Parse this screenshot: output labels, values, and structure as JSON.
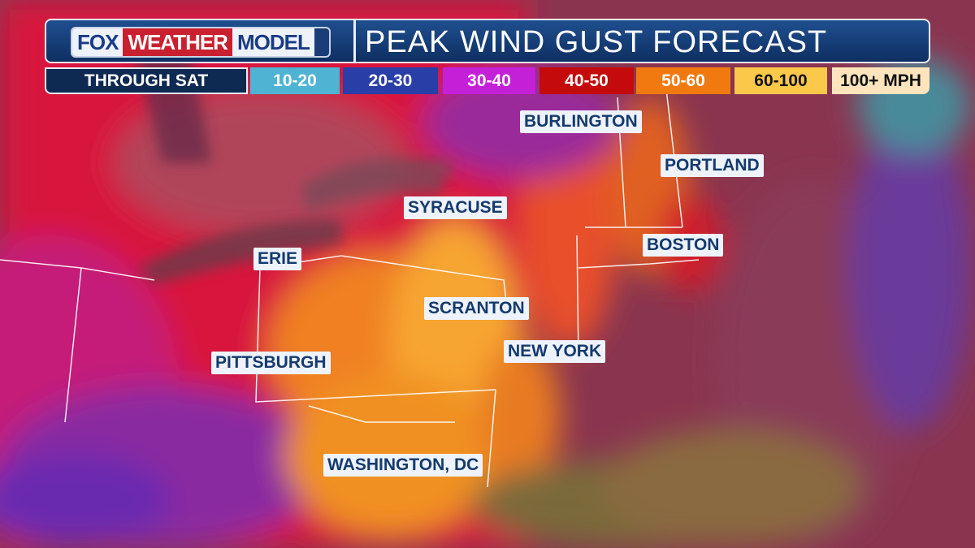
{
  "header": {
    "logo": {
      "fox": "FOX",
      "weather": "WEATHER",
      "model": "MODEL"
    },
    "title": "PEAK WIND GUST FORECAST",
    "period": "THROUGH SAT"
  },
  "legend": [
    {
      "label": "10-20",
      "color": "#4fb3d3",
      "text_color": "#ffffff"
    },
    {
      "label": "20-30",
      "color": "#2a3ea8",
      "text_color": "#ffffff"
    },
    {
      "label": "30-40",
      "color": "#c420d8",
      "text_color": "#ffffff"
    },
    {
      "label": "40-50",
      "color": "#c40a0a",
      "text_color": "#ffffff"
    },
    {
      "label": "50-60",
      "color": "#f07a10",
      "text_color": "#ffffff"
    },
    {
      "label": "60-100",
      "color": "#fcc84a",
      "text_color": "#111111"
    },
    {
      "label": "100+ MPH",
      "color": "#fde4bc",
      "text_color": "#111111"
    }
  ],
  "cities": [
    "BURLINGTON",
    "PORTLAND",
    "SYRACUSE",
    "BOSTON",
    "ERIE",
    "SCRANTON",
    "NEW YORK",
    "PITTSBURGH",
    "WASHINGTON, DC"
  ]
}
